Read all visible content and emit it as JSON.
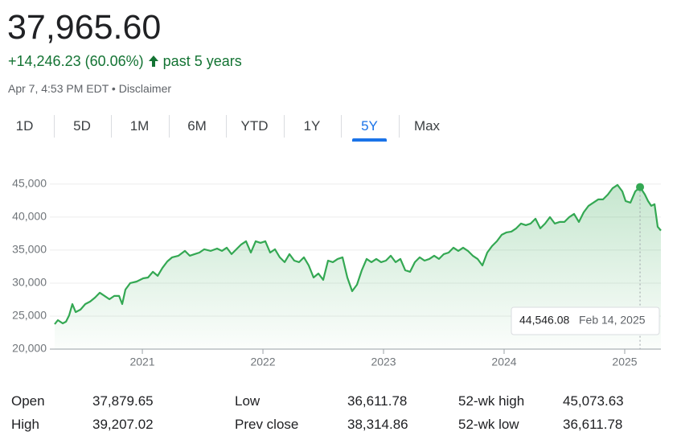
{
  "header": {
    "price": "37,965.60",
    "change": "+14,246.23 (60.06%)",
    "period": "past 5 years",
    "timestamp": "Apr 7, 4:53 PM EDT",
    "disclaimer": "Disclaimer"
  },
  "tabs": [
    "1D",
    "5D",
    "1M",
    "6M",
    "YTD",
    "1Y",
    "5Y",
    "Max"
  ],
  "selected_tab": 6,
  "chart_data": {
    "type": "line",
    "color": "#34a853",
    "x": [
      2020.273,
      2020.3,
      2020.34,
      2020.367,
      2020.393,
      2020.42,
      2020.447,
      2020.487,
      2020.527,
      2020.567,
      2020.607,
      2020.647,
      2020.687,
      2020.727,
      2020.767,
      2020.807,
      2020.833,
      2020.86,
      2020.9,
      2020.953,
      2021.007,
      2021.047,
      2021.087,
      2021.127,
      2021.167,
      2021.207,
      2021.247,
      2021.3,
      2021.353,
      2021.393,
      2021.433,
      2021.473,
      2021.513,
      2021.567,
      2021.62,
      2021.66,
      2021.7,
      2021.74,
      2021.78,
      2021.82,
      2021.86,
      2021.9,
      2021.94,
      2021.98,
      2022.02,
      2022.06,
      2022.1,
      2022.14,
      2022.18,
      2022.22,
      2022.26,
      2022.3,
      2022.34,
      2022.38,
      2022.42,
      2022.46,
      2022.5,
      2022.54,
      2022.58,
      2022.62,
      2022.66,
      2022.7,
      2022.74,
      2022.78,
      2022.82,
      2022.86,
      2022.9,
      2022.94,
      2022.98,
      2023.02,
      2023.06,
      2023.1,
      2023.14,
      2023.18,
      2023.22,
      2023.26,
      2023.3,
      2023.34,
      2023.38,
      2023.42,
      2023.46,
      2023.5,
      2023.54,
      2023.58,
      2023.62,
      2023.66,
      2023.7,
      2023.74,
      2023.78,
      2023.82,
      2023.86,
      2023.9,
      2023.94,
      2023.98,
      2024.02,
      2024.06,
      2024.1,
      2024.14,
      2024.18,
      2024.22,
      2024.26,
      2024.3,
      2024.34,
      2024.38,
      2024.42,
      2024.46,
      2024.5,
      2024.54,
      2024.58,
      2024.62,
      2024.66,
      2024.7,
      2024.74,
      2024.78,
      2024.82,
      2024.86,
      2024.9,
      2024.94,
      2024.98,
      2025.007,
      2025.047,
      2025.087,
      2025.127,
      2025.167,
      2025.193,
      2025.22,
      2025.247,
      2025.273,
      2025.3
    ],
    "values": [
      23780,
      24390,
      23900,
      24150,
      25120,
      26830,
      25610,
      25980,
      26830,
      27200,
      27800,
      28540,
      28050,
      27560,
      28050,
      28050,
      26830,
      29020,
      30000,
      30240,
      30730,
      30850,
      31710,
      31100,
      32320,
      33290,
      33900,
      34150,
      34880,
      34150,
      34390,
      34630,
      35120,
      34880,
      35240,
      34880,
      35370,
      34390,
      35120,
      35850,
      36340,
      34630,
      36340,
      36100,
      36340,
      34630,
      35120,
      33900,
      33170,
      34390,
      33410,
      33170,
      33900,
      32680,
      30850,
      31460,
      30490,
      33410,
      33170,
      33660,
      33900,
      30850,
      28780,
      29760,
      31950,
      33660,
      33170,
      33660,
      33170,
      33410,
      34150,
      33170,
      33660,
      31950,
      31710,
      33170,
      33900,
      33410,
      33660,
      34150,
      33660,
      34390,
      34630,
      35370,
      34880,
      35370,
      34880,
      34150,
      33660,
      32680,
      34630,
      35610,
      36340,
      37320,
      37680,
      37800,
      38290,
      39020,
      38780,
      39020,
      39760,
      38290,
      39020,
      40000,
      39020,
      39270,
      39270,
      40000,
      40490,
      39270,
      40730,
      41710,
      42190,
      42680,
      42680,
      43410,
      44390,
      44880,
      43900,
      42440,
      42190,
      43900,
      44546.08,
      43410,
      42440,
      41710,
      41950,
      38540,
      37965.6
    ],
    "xlim": [
      2020.233,
      2025.3
    ],
    "xticks": [
      2021,
      2022,
      2023,
      2024,
      2025
    ],
    "ylim": [
      20000,
      47300
    ],
    "yticks": [
      {
        "value": 20000,
        "label": "20,000"
      },
      {
        "value": 25000,
        "label": "25,000"
      },
      {
        "value": 30000,
        "label": "30,000"
      },
      {
        "value": 35000,
        "label": "35,000"
      },
      {
        "value": 40000,
        "label": "40,000"
      },
      {
        "value": 45000,
        "label": "45,000"
      }
    ],
    "grid": true,
    "highlight": {
      "x": 2025.127,
      "value": 44546.08,
      "value_label": "44,546.08",
      "date_label": "Feb 14, 2025"
    }
  },
  "stats": [
    [
      [
        "Open",
        "37,879.65"
      ],
      [
        "Low",
        "36,611.78"
      ],
      [
        "52-wk high",
        "45,073.63"
      ]
    ],
    [
      [
        "High",
        "39,207.02"
      ],
      [
        "Prev close",
        "38,314.86"
      ],
      [
        "52-wk low",
        "36,611.78"
      ]
    ]
  ]
}
